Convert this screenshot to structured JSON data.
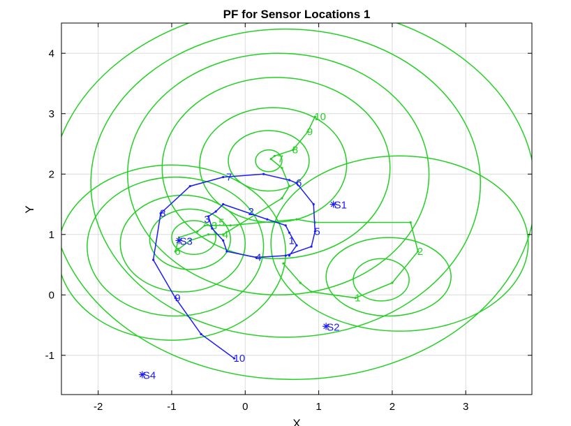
{
  "chart_data": {
    "type": "line",
    "title": "PF for Sensor Locations 1",
    "xlabel": "X",
    "ylabel": "Y",
    "xlim": [
      -2.5,
      3.9
    ],
    "ylim": [
      -1.65,
      4.5
    ],
    "xticks": [
      -2,
      -1,
      0,
      1,
      2,
      3
    ],
    "yticks": [
      -1,
      0,
      1,
      2,
      3,
      4
    ],
    "grid": true,
    "colors": {
      "true_path": "#1a1aff",
      "estimate": "#22d022",
      "axes": "#000000",
      "grid": "#dcdcdc"
    },
    "sensors": [
      {
        "label": "S1",
        "x": 1.2,
        "y": 1.5
      },
      {
        "label": "S2",
        "x": 1.1,
        "y": -0.52
      },
      {
        "label": "S3",
        "x": -0.9,
        "y": 0.9
      },
      {
        "label": "S4",
        "x": -1.4,
        "y": -1.32
      }
    ],
    "true_path": {
      "points": [
        [
          0.6,
          0.65
        ],
        [
          0.7,
          0.82
        ],
        [
          0.6,
          1.03
        ],
        [
          0.55,
          1.15
        ],
        [
          0.3,
          1.25
        ],
        [
          -0.3,
          1.5
        ],
        [
          -0.4,
          1.38
        ],
        [
          -0.5,
          1.3
        ],
        [
          -0.45,
          1.1
        ],
        [
          -0.3,
          0.9
        ],
        [
          -0.25,
          0.72
        ],
        [
          0.15,
          0.62
        ],
        [
          0.55,
          0.65
        ],
        [
          0.9,
          0.8
        ],
        [
          0.95,
          1.05
        ],
        [
          0.93,
          1.5
        ],
        [
          0.7,
          1.85
        ],
        [
          0.6,
          1.9
        ],
        [
          0.25,
          2.0
        ],
        [
          -0.3,
          1.95
        ],
        [
          -0.75,
          1.8
        ],
        [
          -1.15,
          1.35
        ],
        [
          -1.25,
          0.58
        ],
        [
          -0.95,
          -0.05
        ],
        [
          -0.6,
          -0.65
        ],
        [
          -0.15,
          -1.05
        ]
      ],
      "labels": [
        {
          "text": "1",
          "x": 0.6,
          "y": 0.9
        },
        {
          "text": "2",
          "x": 0.05,
          "y": 1.38
        },
        {
          "text": "3",
          "x": -0.55,
          "y": 1.25
        },
        {
          "text": "4",
          "x": 0.15,
          "y": 0.62
        },
        {
          "text": "5",
          "x": 0.95,
          "y": 1.05
        },
        {
          "text": "6",
          "x": 0.7,
          "y": 1.85
        },
        {
          "text": "7",
          "x": -0.25,
          "y": 1.95
        },
        {
          "text": "8",
          "x": -1.15,
          "y": 1.35
        },
        {
          "text": "9",
          "x": -0.95,
          "y": -0.05
        },
        {
          "text": "10",
          "x": -0.15,
          "y": -1.05
        }
      ]
    },
    "estimate_path": {
      "points": [
        [
          0.52,
          0.52
        ],
        [
          0.75,
          0.2
        ],
        [
          0.9,
          0.05
        ],
        [
          1.5,
          -0.05
        ],
        [
          2.0,
          0.2
        ],
        [
          2.35,
          0.72
        ],
        [
          2.25,
          1.2
        ],
        [
          0.95,
          1.2
        ],
        [
          0.7,
          1.25
        ],
        [
          -0.2,
          1.15
        ],
        [
          -0.45,
          1.15
        ],
        [
          -0.55,
          1.15
        ],
        [
          -0.65,
          1.05
        ],
        [
          -0.9,
          0.95
        ],
        [
          -0.95,
          0.72
        ],
        [
          -0.75,
          0.9
        ],
        [
          -0.5,
          1.0
        ],
        [
          -0.4,
          1.0
        ],
        [
          -0.3,
          1.0
        ],
        [
          0.5,
          1.6
        ],
        [
          0.6,
          1.8
        ],
        [
          0.5,
          2.1
        ],
        [
          0.35,
          2.25
        ],
        [
          0.4,
          2.3
        ],
        [
          0.65,
          2.4
        ],
        [
          0.85,
          2.7
        ],
        [
          0.95,
          2.95
        ]
      ],
      "labels": [
        {
          "text": "1",
          "x": 1.5,
          "y": -0.05
        },
        {
          "text": "2",
          "x": 2.35,
          "y": 0.72
        },
        {
          "text": "3",
          "x": -0.45,
          "y": 1.15
        },
        {
          "text": "4",
          "x": -0.3,
          "y": 1.0
        },
        {
          "text": "5",
          "x": -0.35,
          "y": 1.2
        },
        {
          "text": "6",
          "x": -0.95,
          "y": 0.72
        },
        {
          "text": "7",
          "x": 0.45,
          "y": 2.25
        },
        {
          "text": "8",
          "x": 0.65,
          "y": 2.4
        },
        {
          "text": "9",
          "x": 0.85,
          "y": 2.7
        },
        {
          "text": "10",
          "x": 0.95,
          "y": 2.95
        }
      ]
    },
    "ellipses": [
      {
        "cx": 0.32,
        "cy": 2.22,
        "rx": 0.18,
        "ry": 0.18
      },
      {
        "cx": 0.32,
        "cy": 2.22,
        "rx": 0.55,
        "ry": 0.5
      },
      {
        "cx": 0.38,
        "cy": 2.15,
        "rx": 1.0,
        "ry": 0.95
      },
      {
        "cx": 0.42,
        "cy": 2.1,
        "rx": 1.55,
        "ry": 1.5
      },
      {
        "cx": 0.45,
        "cy": 2.0,
        "rx": 2.05,
        "ry": 2.0
      },
      {
        "cx": 0.55,
        "cy": 1.85,
        "rx": 2.65,
        "ry": 2.55
      },
      {
        "cx": 0.65,
        "cy": 1.7,
        "rx": 3.3,
        "ry": 3.1
      },
      {
        "cx": -0.7,
        "cy": 0.95,
        "rx": 0.3,
        "ry": 0.28
      },
      {
        "cx": -0.75,
        "cy": 0.92,
        "rx": 0.55,
        "ry": 0.5
      },
      {
        "cx": -0.85,
        "cy": 0.85,
        "rx": 0.85,
        "ry": 0.8
      },
      {
        "cx": -0.95,
        "cy": 0.8,
        "rx": 1.2,
        "ry": 1.15
      },
      {
        "cx": -1.0,
        "cy": 0.7,
        "rx": 1.55,
        "ry": 1.45
      },
      {
        "cx": 1.85,
        "cy": 0.25,
        "rx": 0.38,
        "ry": 0.35
      },
      {
        "cx": 1.95,
        "cy": 0.3,
        "rx": 0.85,
        "ry": 0.65
      },
      {
        "cx": 2.1,
        "cy": 0.85,
        "rx": 1.75,
        "ry": 1.45
      }
    ]
  }
}
